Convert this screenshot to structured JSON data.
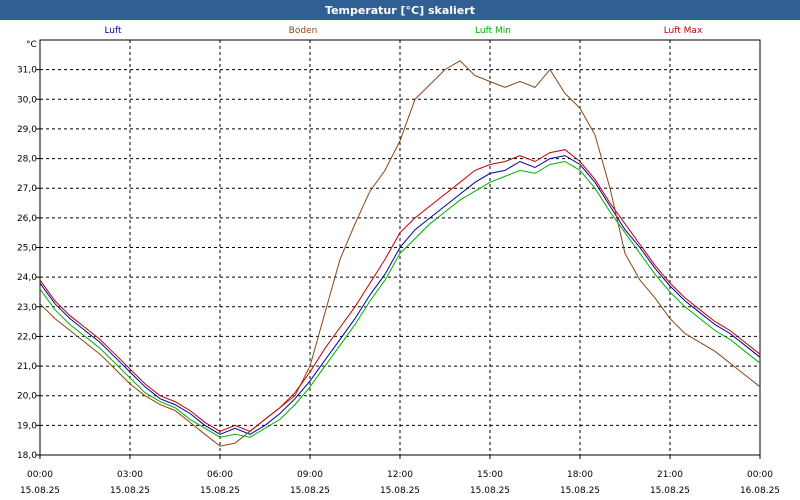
{
  "window": {
    "title": "Temperatur [°C] skaliert"
  },
  "colors": {
    "titlebar": "#2f5f93",
    "grid": "#000000"
  },
  "chart_data": {
    "type": "line",
    "title": "Temperatur [°C] skaliert",
    "xlabel": "",
    "ylabel": "°C",
    "ylim": [
      18.0,
      32.0
    ],
    "xlim": [
      0,
      24
    ],
    "yticks": [
      18.0,
      19.0,
      20.0,
      21.0,
      22.0,
      23.0,
      24.0,
      25.0,
      26.0,
      27.0,
      28.0,
      29.0,
      30.0,
      31.0
    ],
    "ytick_labels": [
      "18,0",
      "19,0",
      "20,0",
      "21,0",
      "22,0",
      "23,0",
      "24,0",
      "25,0",
      "26,0",
      "27,0",
      "28,0",
      "29,0",
      "30,0",
      "31,0"
    ],
    "xticks": [
      {
        "t": 0,
        "time": "00:00",
        "date": "15.08.25"
      },
      {
        "t": 3,
        "time": "03:00",
        "date": "15.08.25"
      },
      {
        "t": 6,
        "time": "06:00",
        "date": "15.08.25"
      },
      {
        "t": 9,
        "time": "09:00",
        "date": "15.08.25"
      },
      {
        "t": 12,
        "time": "12:00",
        "date": "15.08.25"
      },
      {
        "t": 15,
        "time": "15:00",
        "date": "15.08.25"
      },
      {
        "t": 18,
        "time": "18:00",
        "date": "15.08.25"
      },
      {
        "t": 21,
        "time": "21:00",
        "date": "15.08.25"
      },
      {
        "t": 24,
        "time": "00:00",
        "date": "16.08.25"
      }
    ],
    "series": [
      {
        "name": "Luft",
        "color": "#0000a0",
        "x": [
          0,
          0.5,
          1,
          1.5,
          2,
          2.5,
          3,
          3.5,
          4,
          4.5,
          5,
          5.5,
          6,
          6.5,
          7,
          7.5,
          8,
          8.5,
          9,
          9.5,
          10,
          10.5,
          11,
          11.5,
          12,
          12.5,
          13,
          13.5,
          14,
          14.5,
          15,
          15.5,
          16,
          16.5,
          17,
          17.5,
          18,
          18.5,
          19,
          19.5,
          20,
          20.5,
          21,
          21.5,
          22,
          22.5,
          23,
          23.5,
          24
        ],
        "y": [
          23.8,
          23.1,
          22.6,
          22.2,
          21.8,
          21.3,
          20.8,
          20.3,
          19.9,
          19.7,
          19.4,
          19.0,
          18.7,
          18.9,
          18.7,
          19.0,
          19.4,
          19.9,
          20.5,
          21.2,
          21.9,
          22.6,
          23.4,
          24.1,
          25.0,
          25.6,
          26.0,
          26.4,
          26.8,
          27.2,
          27.5,
          27.6,
          27.9,
          27.7,
          28.0,
          28.1,
          27.8,
          27.2,
          26.4,
          25.6,
          25.0,
          24.3,
          23.7,
          23.2,
          22.8,
          22.4,
          22.1,
          21.7,
          21.3
        ]
      },
      {
        "name": "Boden",
        "color": "#8b4513",
        "x": [
          0,
          0.5,
          1,
          1.5,
          2,
          2.5,
          3,
          3.5,
          4,
          4.5,
          5,
          5.5,
          6,
          6.5,
          7,
          7.5,
          8,
          8.5,
          9,
          9.5,
          10,
          10.5,
          11,
          11.5,
          12,
          12.5,
          13,
          13.5,
          14,
          14.5,
          15,
          15.5,
          16,
          16.5,
          17,
          17.5,
          18,
          18.5,
          19,
          19.5,
          20,
          20.5,
          21,
          21.5,
          22,
          22.5,
          23,
          23.5,
          24
        ],
        "y": [
          23.1,
          22.6,
          22.2,
          21.8,
          21.4,
          20.9,
          20.4,
          20.0,
          19.7,
          19.5,
          19.1,
          18.7,
          18.3,
          18.4,
          18.8,
          19.2,
          19.6,
          20.0,
          21.0,
          22.8,
          24.6,
          25.8,
          26.9,
          27.6,
          28.6,
          30.0,
          30.5,
          31.0,
          31.3,
          30.8,
          30.6,
          30.4,
          30.6,
          30.4,
          31.0,
          30.2,
          29.7,
          28.8,
          27.0,
          24.8,
          23.9,
          23.3,
          22.6,
          22.1,
          21.8,
          21.5,
          21.1,
          20.7,
          20.3
        ]
      },
      {
        "name": "Luft Min",
        "color": "#00b000",
        "x": [
          0,
          0.5,
          1,
          1.5,
          2,
          2.5,
          3,
          3.5,
          4,
          4.5,
          5,
          5.5,
          6,
          6.5,
          7,
          7.5,
          8,
          8.5,
          9,
          9.5,
          10,
          10.5,
          11,
          11.5,
          12,
          12.5,
          13,
          13.5,
          14,
          14.5,
          15,
          15.5,
          16,
          16.5,
          17,
          17.5,
          18,
          18.5,
          19,
          19.5,
          20,
          20.5,
          21,
          21.5,
          22,
          22.5,
          23,
          23.5,
          24
        ],
        "y": [
          23.6,
          22.9,
          22.4,
          22.0,
          21.6,
          21.1,
          20.6,
          20.1,
          19.8,
          19.6,
          19.2,
          18.9,
          18.6,
          18.7,
          18.6,
          18.9,
          19.2,
          19.7,
          20.3,
          21.0,
          21.7,
          22.4,
          23.2,
          23.9,
          24.8,
          25.3,
          25.8,
          26.2,
          26.6,
          26.9,
          27.2,
          27.4,
          27.6,
          27.5,
          27.8,
          27.9,
          27.6,
          27.0,
          26.2,
          25.5,
          24.8,
          24.1,
          23.5,
          23.0,
          22.6,
          22.2,
          21.9,
          21.5,
          21.1
        ]
      },
      {
        "name": "Luft Max",
        "color": "#c00000",
        "x": [
          0,
          0.5,
          1,
          1.5,
          2,
          2.5,
          3,
          3.5,
          4,
          4.5,
          5,
          5.5,
          6,
          6.5,
          7,
          7.5,
          8,
          8.5,
          9,
          9.5,
          10,
          10.5,
          11,
          11.5,
          12,
          12.5,
          13,
          13.5,
          14,
          14.5,
          15,
          15.5,
          16,
          16.5,
          17,
          17.5,
          18,
          18.5,
          19,
          19.5,
          20,
          20.5,
          21,
          21.5,
          22,
          22.5,
          23,
          23.5,
          24
        ],
        "y": [
          23.9,
          23.2,
          22.7,
          22.3,
          21.9,
          21.4,
          20.9,
          20.4,
          20.0,
          19.8,
          19.5,
          19.1,
          18.8,
          19.0,
          18.8,
          19.2,
          19.6,
          20.1,
          20.8,
          21.6,
          22.3,
          23.0,
          23.8,
          24.6,
          25.5,
          26.0,
          26.4,
          26.8,
          27.2,
          27.6,
          27.8,
          27.9,
          28.1,
          27.9,
          28.2,
          28.3,
          27.9,
          27.3,
          26.5,
          25.8,
          25.1,
          24.4,
          23.8,
          23.3,
          22.9,
          22.5,
          22.2,
          21.8,
          21.4
        ]
      }
    ]
  }
}
